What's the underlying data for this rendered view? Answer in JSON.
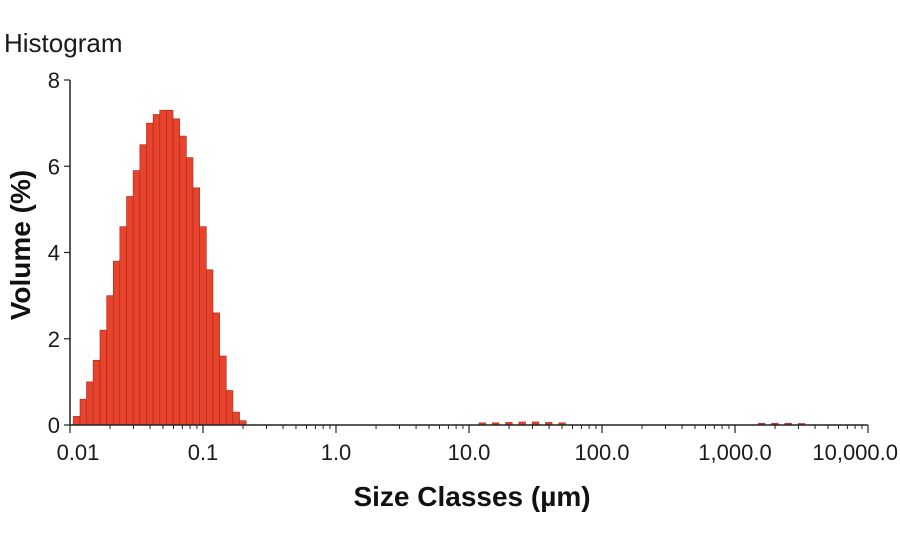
{
  "chart_data": {
    "type": "bar",
    "title": "Histogram",
    "xlabel": "Size Classes (µm)",
    "ylabel": "Volume (%)",
    "x_scale": "log",
    "xlim": [
      0.01,
      10000
    ],
    "ylim": [
      0,
      8
    ],
    "y_ticks": [
      "0",
      "2",
      "4",
      "6",
      "8"
    ],
    "x_ticks": [
      {
        "value": 0.01,
        "label": "0.01"
      },
      {
        "value": 0.1,
        "label": "0.1"
      },
      {
        "value": 1,
        "label": "1.0"
      },
      {
        "value": 10,
        "label": "10.0"
      },
      {
        "value": 100,
        "label": "100.0"
      },
      {
        "value": 1000,
        "label": "1,000.0"
      },
      {
        "value": 10000,
        "label": "10,000.0"
      }
    ],
    "bar_color": "#e8432c",
    "bar_edge_color": "#a8281a",
    "grid": false,
    "series": [
      {
        "bins_per_decade": 20,
        "bins": [
          {
            "x": 0.0112,
            "y": 0.2
          },
          {
            "x": 0.0126,
            "y": 0.6
          },
          {
            "x": 0.0141,
            "y": 1.0
          },
          {
            "x": 0.0158,
            "y": 1.5
          },
          {
            "x": 0.0178,
            "y": 2.2
          },
          {
            "x": 0.02,
            "y": 3.0
          },
          {
            "x": 0.0224,
            "y": 3.8
          },
          {
            "x": 0.0251,
            "y": 4.6
          },
          {
            "x": 0.0282,
            "y": 5.3
          },
          {
            "x": 0.0316,
            "y": 5.9
          },
          {
            "x": 0.0355,
            "y": 6.5
          },
          {
            "x": 0.0398,
            "y": 7.0
          },
          {
            "x": 0.0447,
            "y": 7.2
          },
          {
            "x": 0.0501,
            "y": 7.3
          },
          {
            "x": 0.0562,
            "y": 7.3
          },
          {
            "x": 0.0631,
            "y": 7.1
          },
          {
            "x": 0.0708,
            "y": 6.7
          },
          {
            "x": 0.0794,
            "y": 6.2
          },
          {
            "x": 0.0891,
            "y": 5.5
          },
          {
            "x": 0.1,
            "y": 4.6
          },
          {
            "x": 0.1122,
            "y": 3.6
          },
          {
            "x": 0.1259,
            "y": 2.6
          },
          {
            "x": 0.1413,
            "y": 1.6
          },
          {
            "x": 0.1585,
            "y": 0.8
          },
          {
            "x": 0.1778,
            "y": 0.3
          },
          {
            "x": 0.1995,
            "y": 0.1
          },
          {
            "x": 12.59,
            "y": 0.05
          },
          {
            "x": 15.85,
            "y": 0.05
          },
          {
            "x": 19.95,
            "y": 0.06
          },
          {
            "x": 25.12,
            "y": 0.07
          },
          {
            "x": 31.62,
            "y": 0.07
          },
          {
            "x": 39.81,
            "y": 0.06
          },
          {
            "x": 50.12,
            "y": 0.05
          },
          {
            "x": 1584.9,
            "y": 0.04
          },
          {
            "x": 1995.3,
            "y": 0.04
          },
          {
            "x": 2511.9,
            "y": 0.04
          },
          {
            "x": 3162.3,
            "y": 0.03
          }
        ]
      }
    ]
  }
}
